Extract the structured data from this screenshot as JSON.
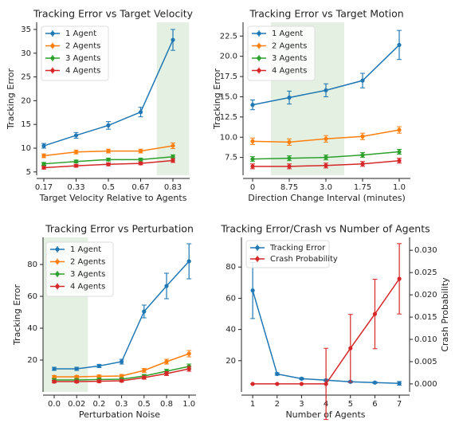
{
  "chart_data": [
    {
      "type": "line",
      "title": "Tracking Error vs Target Velocity",
      "xlabel": "Target Velocity Relative to Agents",
      "ylabel": "Tracking Error",
      "categories": [
        "0.17",
        "0.33",
        "0.5",
        "0.67",
        "0.83"
      ],
      "ylim": [
        4.3,
        36.5
      ],
      "yticks": [
        5,
        10,
        15,
        20,
        25,
        30,
        35
      ],
      "highlight": [
        3.5,
        4.5
      ],
      "highlight_color": "#e4f1e2",
      "grid": false,
      "series": [
        {
          "name": "1 Agent",
          "color": "#1f77b4",
          "values": [
            10.5,
            12.7,
            14.8,
            17.6,
            32.8
          ],
          "errors": [
            0.5,
            0.6,
            0.8,
            1.0,
            2.2
          ]
        },
        {
          "name": "2 Agents",
          "color": "#ff7f0e",
          "values": [
            8.4,
            9.2,
            9.4,
            9.4,
            10.5
          ],
          "errors": [
            0.4,
            0.4,
            0.4,
            0.4,
            0.6
          ]
        },
        {
          "name": "3 Agents",
          "color": "#2ca02c",
          "values": [
            6.7,
            7.2,
            7.6,
            7.6,
            8.2
          ],
          "errors": [
            0.3,
            0.3,
            0.3,
            0.3,
            0.4
          ]
        },
        {
          "name": "4 Agents",
          "color": "#d62728",
          "values": [
            5.9,
            6.3,
            6.6,
            6.8,
            7.4
          ],
          "errors": [
            0.3,
            0.3,
            0.3,
            0.3,
            0.4
          ]
        }
      ]
    },
    {
      "type": "line",
      "title": "Tracking Error vs Target Motion",
      "xlabel": "Direction Change Interval (minutes)",
      "ylabel": "Tracking Error",
      "categories": [
        "0",
        "8.75",
        "3.0",
        "1.75",
        "1.0"
      ],
      "ylim": [
        5.3,
        24.2
      ],
      "yticks": [
        7.5,
        {
          "value": 10,
          "label": "10.0"
        },
        12.5,
        {
          "value": 15,
          "label": "15.0"
        },
        17.5,
        {
          "value": 20,
          "label": "20.0"
        },
        22.5
      ],
      "highlight": [
        0.5,
        2.5
      ],
      "highlight_color": "#e4f1e2",
      "grid": false,
      "series": [
        {
          "name": "1 Agent",
          "color": "#1f77b4",
          "values": [
            14.0,
            14.9,
            15.8,
            17.0,
            21.4
          ],
          "errors": [
            0.6,
            0.8,
            0.8,
            0.9,
            1.8
          ]
        },
        {
          "name": "2 Agents",
          "color": "#ff7f0e",
          "values": [
            9.5,
            9.4,
            9.8,
            10.1,
            10.9
          ],
          "errors": [
            0.4,
            0.4,
            0.4,
            0.4,
            0.4
          ]
        },
        {
          "name": "3 Agents",
          "color": "#2ca02c",
          "values": [
            7.3,
            7.4,
            7.5,
            7.8,
            8.2
          ],
          "errors": [
            0.3,
            0.3,
            0.3,
            0.3,
            0.3
          ]
        },
        {
          "name": "4 Agents",
          "color": "#d62728",
          "values": [
            6.4,
            6.4,
            6.5,
            6.7,
            7.1
          ],
          "errors": [
            0.3,
            0.3,
            0.3,
            0.3,
            0.3
          ]
        }
      ]
    },
    {
      "type": "line",
      "title": "Tracking Error vs Perturbation",
      "xlabel": "Perturbation Noise",
      "ylabel": "Tracking Error",
      "categories": [
        "0.0",
        "0.02",
        "0.2",
        "0.3",
        "0.5",
        "0.8",
        "1.0"
      ],
      "ylim": [
        0,
        97
      ],
      "yticks": [
        20,
        40,
        60,
        80
      ],
      "highlight": [
        -0.5,
        1.5
      ],
      "highlight_color": "#e4f1e2",
      "grid": false,
      "series": [
        {
          "name": "1 Agent",
          "color": "#1f77b4",
          "values": [
            14.5,
            14.5,
            16.3,
            19,
            50.5,
            66.5,
            82
          ],
          "errors": [
            1,
            1,
            1,
            1.5,
            4,
            8,
            11
          ]
        },
        {
          "name": "2 Agents",
          "color": "#ff7f0e",
          "values": [
            9.5,
            9.5,
            9.8,
            10,
            13.5,
            19,
            24
          ],
          "errors": [
            0.8,
            0.8,
            0.8,
            1,
            1.2,
            1.5,
            2
          ]
        },
        {
          "name": "3 Agents",
          "color": "#2ca02c",
          "values": [
            7.5,
            7.5,
            7.8,
            8,
            10,
            13,
            16
          ],
          "errors": [
            0.8,
            0.8,
            0.8,
            0.8,
            1,
            1.2,
            1.5
          ]
        },
        {
          "name": "4 Agents",
          "color": "#d62728",
          "values": [
            6.5,
            6.5,
            6.7,
            7,
            9,
            11.5,
            14.5
          ],
          "errors": [
            0.8,
            0.8,
            0.8,
            0.8,
            1,
            1.2,
            1.5
          ]
        }
      ]
    },
    {
      "type": "line",
      "title": "Tracking Error/Crash vs Number of Agents",
      "xlabel": "Number of Agents",
      "y2label": "Crash Probability",
      "x": [
        1,
        2,
        3,
        4,
        5,
        6,
        7
      ],
      "xlim": [
        0.54,
        7.42
      ],
      "xticks": [
        1,
        2,
        3,
        4,
        5,
        6,
        7
      ],
      "ylim": [
        0,
        99
      ],
      "yticks": [
        20,
        40,
        60,
        80
      ],
      "y2lim": [
        -0.0018,
        0.0329
      ],
      "y2ticks": [
        {
          "value": 0,
          "label": "0.000"
        },
        {
          "value": 0.005,
          "label": "0.005"
        },
        {
          "value": 0.01,
          "label": "0.010"
        },
        {
          "value": 0.015,
          "label": "0.015"
        },
        {
          "value": 0.02,
          "label": "0.020"
        },
        {
          "value": 0.025,
          "label": "0.025"
        },
        {
          "value": 0.03,
          "label": "0.030"
        }
      ],
      "grid": false,
      "series": [
        {
          "name": "Tracking Error",
          "color": "#1f77b4",
          "values": [
            65,
            11.5,
            8.5,
            7.5,
            6.5,
            6,
            5.5
          ],
          "errors": [
            18,
            0.8,
            0.6,
            0.6,
            0.5,
            0.5,
            1.2
          ]
        },
        {
          "name": "Crash Probability",
          "color": "#d62728",
          "axis": "y2",
          "values": [
            0,
            0,
            0,
            0,
            0.008,
            0.0157,
            0.0236
          ],
          "errors": [
            0,
            0,
            0,
            0.008,
            0.0076,
            0.0078,
            0.0079
          ]
        }
      ]
    }
  ]
}
